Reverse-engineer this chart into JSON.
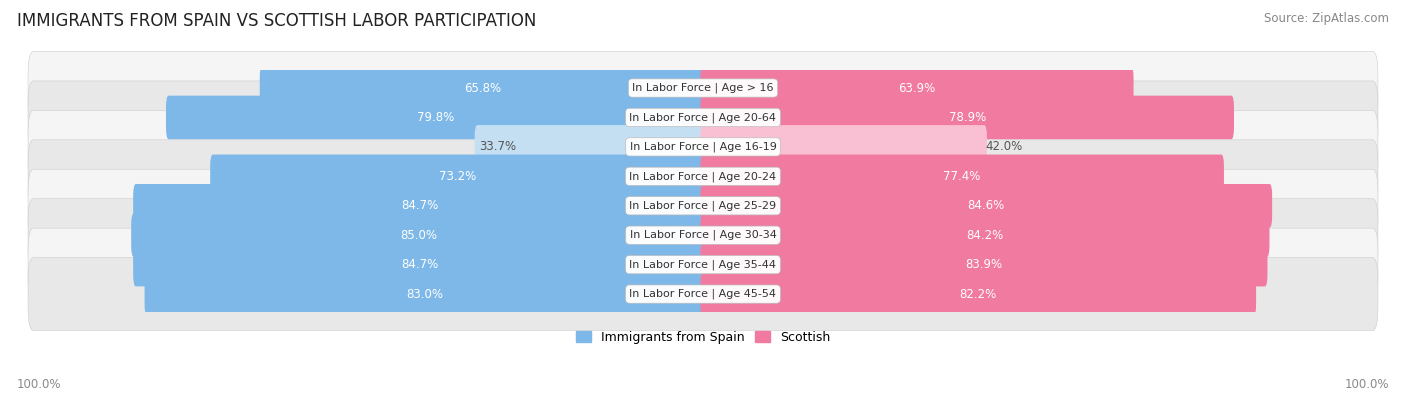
{
  "title": "IMMIGRANTS FROM SPAIN VS SCOTTISH LABOR PARTICIPATION",
  "source": "Source: ZipAtlas.com",
  "categories": [
    "In Labor Force | Age > 16",
    "In Labor Force | Age 20-64",
    "In Labor Force | Age 16-19",
    "In Labor Force | Age 20-24",
    "In Labor Force | Age 25-29",
    "In Labor Force | Age 30-34",
    "In Labor Force | Age 35-44",
    "In Labor Force | Age 45-54"
  ],
  "spain_values": [
    65.8,
    79.8,
    33.7,
    73.2,
    84.7,
    85.0,
    84.7,
    83.0
  ],
  "scottish_values": [
    63.9,
    78.9,
    42.0,
    77.4,
    84.6,
    84.2,
    83.9,
    82.2
  ],
  "spain_color": "#7db8e8",
  "scottish_color": "#f07aa0",
  "spain_color_light": "#c5dff2",
  "scottish_color_light": "#f9c0d4",
  "row_bg_color_odd": "#f5f5f5",
  "row_bg_color_even": "#e8e8e8",
  "label_color_dark": "#555555",
  "label_color_white": "#ffffff",
  "title_fontsize": 12,
  "source_fontsize": 8.5,
  "bar_label_fontsize": 8.5,
  "category_fontsize": 8,
  "legend_fontsize": 9,
  "max_value": 100.0,
  "footer_label": "100.0%"
}
